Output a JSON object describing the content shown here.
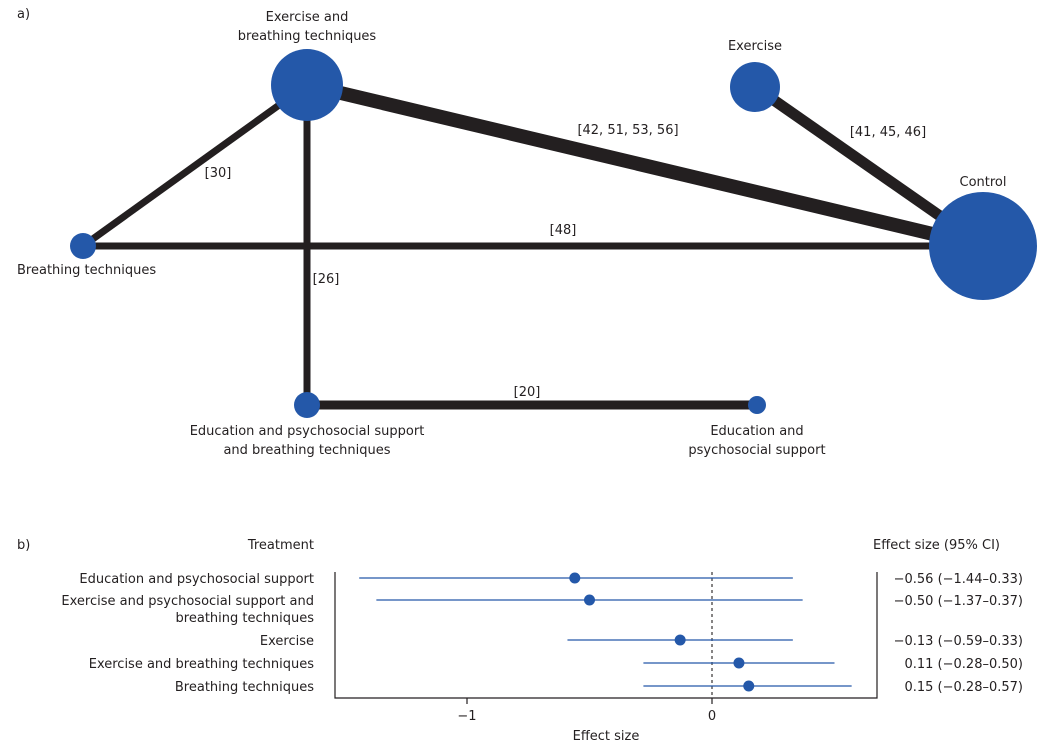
{
  "panel_a": {
    "label": "a)",
    "nodes": [
      {
        "id": "exb",
        "label_lines": [
          "Exercise and",
          "breathing techniques"
        ]
      },
      {
        "id": "ex",
        "label_lines": [
          "Exercise"
        ]
      },
      {
        "id": "ctrl",
        "label_lines": [
          "Control"
        ]
      },
      {
        "id": "bt",
        "label_lines": [
          "Breathing techniques"
        ]
      },
      {
        "id": "epsbt",
        "label_lines": [
          "Education and psychosocial support",
          "and breathing techniques"
        ]
      },
      {
        "id": "eps",
        "label_lines": [
          "Education and",
          "psychosocial support"
        ]
      }
    ],
    "edges": [
      {
        "from": "exb",
        "to": "ctrl",
        "label": "[42, 51, 53, 56]"
      },
      {
        "from": "ex",
        "to": "ctrl",
        "label": "[41, 45, 46]"
      },
      {
        "from": "exb",
        "to": "bt",
        "label": "[30]"
      },
      {
        "from": "bt",
        "to": "ctrl",
        "label": "[48]"
      },
      {
        "from": "exb",
        "to": "epsbt",
        "label": "[26]"
      },
      {
        "from": "epsbt",
        "to": "eps",
        "label": "[20]"
      }
    ]
  },
  "panel_b": {
    "label": "b)",
    "treatment_header": "Treatment",
    "effect_header": "Effect size  (95% CI)",
    "xlabel": "Effect size",
    "tick_labels": [
      "−1",
      "0"
    ]
  },
  "chart_data": {
    "type": "forest",
    "xlabel": "Effect size",
    "xlim": [
      -1.55,
      0.67
    ],
    "ticks": [
      -1,
      0
    ],
    "reference_line": 0,
    "rows": [
      {
        "label_lines": [
          "Education and psychosocial support"
        ],
        "estimate": -0.56,
        "lower": -1.44,
        "upper": 0.33,
        "ci_text": "−0.56  (−1.44–0.33)"
      },
      {
        "label_lines": [
          "Exercise and psychosocial support and",
          "breathing techniques"
        ],
        "estimate": -0.5,
        "lower": -1.37,
        "upper": 0.37,
        "ci_text": "−0.50  (−1.37–0.37)"
      },
      {
        "label_lines": [
          "Exercise"
        ],
        "estimate": -0.13,
        "lower": -0.59,
        "upper": 0.33,
        "ci_text": "−0.13  (−0.59–0.33)"
      },
      {
        "label_lines": [
          "Exercise and breathing techniques"
        ],
        "estimate": 0.11,
        "lower": -0.28,
        "upper": 0.5,
        "ci_text": "0.11  (−0.28–0.50)"
      },
      {
        "label_lines": [
          "Breathing techniques"
        ],
        "estimate": 0.15,
        "lower": -0.28,
        "upper": 0.57,
        "ci_text": "0.15  (−0.28–0.57)"
      }
    ]
  }
}
